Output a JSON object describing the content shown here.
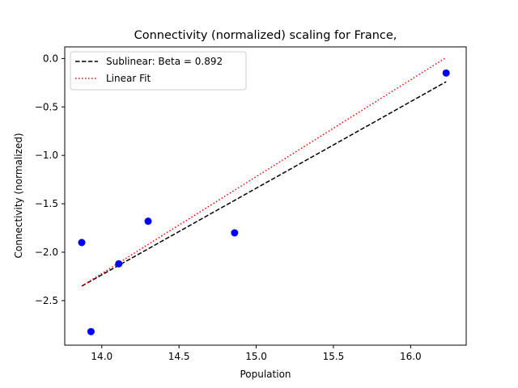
{
  "chart_data": {
    "type": "scatter",
    "title": "Connectivity (normalized) scaling for France,",
    "xlabel": "Population",
    "ylabel": "Connectivity (normalized)",
    "xlim": [
      13.76,
      16.36
    ],
    "ylim": [
      -2.96,
      0.12
    ],
    "xticks": [
      14.0,
      14.5,
      15.0,
      15.5,
      16.0
    ],
    "xtick_labels": [
      "14.0",
      "14.5",
      "15.0",
      "15.5",
      "16.0"
    ],
    "yticks": [
      0.0,
      -0.5,
      -1.0,
      -1.5,
      -2.0,
      -2.5
    ],
    "ytick_labels": [
      "0.0",
      "−0.5",
      "−1.0",
      "−1.5",
      "−2.0",
      "−2.5"
    ],
    "grid": false,
    "legend_position": "upper-left",
    "points": {
      "color": "#0000ff",
      "x": [
        13.87,
        13.93,
        14.11,
        14.3,
        14.86,
        16.23
      ],
      "y": [
        -1.9,
        -2.82,
        -2.12,
        -1.68,
        -1.8,
        -0.15
      ]
    },
    "series": [
      {
        "name": "Sublinear: Beta = 0.892",
        "style": "dashed",
        "color": "#000000",
        "x": [
          13.87,
          16.23
        ],
        "y": [
          -2.35,
          -0.24
        ]
      },
      {
        "name": "Linear Fit",
        "style": "dotted",
        "color": "#ff0000",
        "x": [
          13.87,
          16.23
        ],
        "y": [
          -2.35,
          0.01
        ]
      }
    ]
  }
}
